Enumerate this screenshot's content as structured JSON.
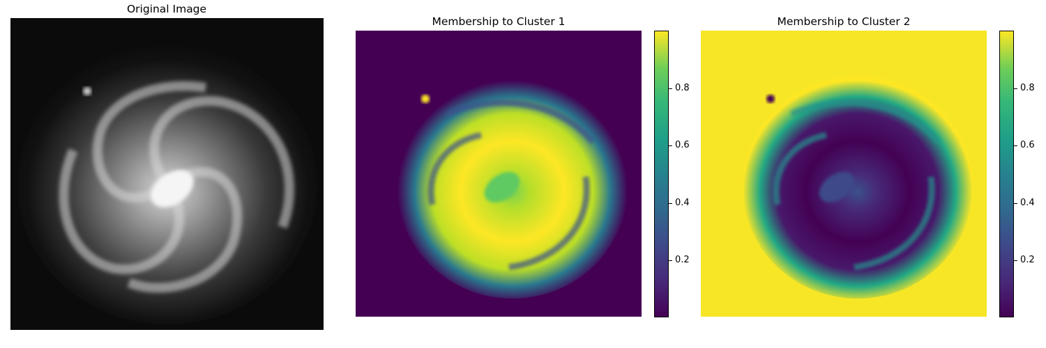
{
  "panels": [
    {
      "title": "Original Image"
    },
    {
      "title": "Membership to Cluster 1"
    },
    {
      "title": "Membership to Cluster 2"
    }
  ],
  "colorbar": {
    "colormap": "viridis",
    "range": [
      0.0,
      1.0
    ],
    "ticks": [
      "0.8",
      "0.6",
      "0.4",
      "0.2"
    ]
  },
  "colors": {
    "viridis_low": "#440154",
    "viridis_mid": "#21918c",
    "viridis_high": "#fde725"
  }
}
